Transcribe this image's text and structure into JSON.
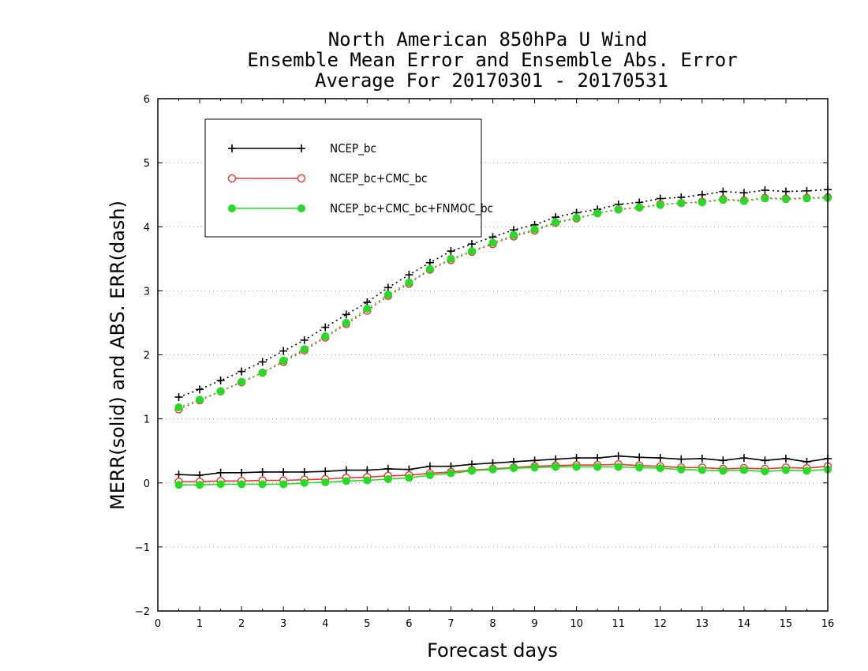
{
  "chart_data": {
    "type": "line",
    "title_lines": [
      "North American 850hPa U Wind",
      "Ensemble Mean Error and Ensemble Abs. Error",
      "Average For 20170301 - 20170531"
    ],
    "xlabel": "Forecast days",
    "ylabel": "MERR(solid) and ABS. ERR(dash)",
    "xlim": [
      0,
      16
    ],
    "ylim": [
      -2,
      6
    ],
    "x_ticks": [
      0,
      1,
      2,
      3,
      4,
      5,
      6,
      7,
      8,
      9,
      10,
      11,
      12,
      13,
      14,
      15,
      16
    ],
    "y_ticks": [
      -2,
      -1,
      0,
      1,
      2,
      3,
      4,
      5,
      6
    ],
    "grid": "horizontal dotted",
    "legend_position": "top-left",
    "x": [
      0.5,
      1,
      1.5,
      2,
      2.5,
      3,
      3.5,
      4,
      4.5,
      5,
      5.5,
      6,
      6.5,
      7,
      7.5,
      8,
      8.5,
      9,
      9.5,
      10,
      10.5,
      11,
      11.5,
      12,
      12.5,
      13,
      13.5,
      14,
      14.5,
      15,
      15.5,
      16
    ],
    "series": [
      {
        "name": "NCEP_bc",
        "color": "#000000",
        "marker": "plus",
        "merr": [
          0.13,
          0.12,
          0.16,
          0.16,
          0.17,
          0.17,
          0.17,
          0.18,
          0.2,
          0.2,
          0.22,
          0.21,
          0.26,
          0.26,
          0.29,
          0.31,
          0.33,
          0.35,
          0.37,
          0.39,
          0.39,
          0.42,
          0.4,
          0.39,
          0.37,
          0.38,
          0.35,
          0.39,
          0.35,
          0.38,
          0.33,
          0.38
        ],
        "abs_err": [
          1.34,
          1.46,
          1.6,
          1.74,
          1.89,
          2.06,
          2.23,
          2.43,
          2.63,
          2.82,
          3.05,
          3.25,
          3.44,
          3.62,
          3.73,
          3.84,
          3.95,
          4.03,
          4.15,
          4.22,
          4.27,
          4.35,
          4.38,
          4.44,
          4.46,
          4.5,
          4.55,
          4.53,
          4.57,
          4.55,
          4.56,
          4.58
        ]
      },
      {
        "name": "NCEP_bc+CMC_bc",
        "color": "#ee3333",
        "marker": "open-circle",
        "merr": [
          0.02,
          0.02,
          0.03,
          0.03,
          0.04,
          0.04,
          0.05,
          0.06,
          0.08,
          0.09,
          0.11,
          0.12,
          0.15,
          0.17,
          0.2,
          0.22,
          0.24,
          0.26,
          0.27,
          0.28,
          0.28,
          0.29,
          0.27,
          0.26,
          0.24,
          0.24,
          0.22,
          0.23,
          0.22,
          0.24,
          0.23,
          0.26
        ],
        "abs_err": [
          1.15,
          1.29,
          1.43,
          1.57,
          1.72,
          1.89,
          2.07,
          2.27,
          2.48,
          2.69,
          2.92,
          3.11,
          3.33,
          3.48,
          3.61,
          3.73,
          3.85,
          3.94,
          4.06,
          4.13,
          4.21,
          4.27,
          4.3,
          4.35,
          4.37,
          4.39,
          4.43,
          4.41,
          4.45,
          4.44,
          4.45,
          4.46
        ]
      },
      {
        "name": "NCEP_bc+CMC_bc+FNMOC_bc",
        "color": "#22dd22",
        "marker": "filled-circle",
        "merr": [
          -0.03,
          -0.03,
          -0.02,
          -0.02,
          -0.02,
          -0.02,
          0.0,
          0.01,
          0.03,
          0.04,
          0.06,
          0.08,
          0.12,
          0.15,
          0.19,
          0.21,
          0.23,
          0.24,
          0.25,
          0.25,
          0.25,
          0.25,
          0.24,
          0.23,
          0.21,
          0.2,
          0.19,
          0.2,
          0.18,
          0.2,
          0.19,
          0.21
        ],
        "abs_err": [
          1.18,
          1.3,
          1.43,
          1.58,
          1.72,
          1.91,
          2.09,
          2.29,
          2.5,
          2.72,
          2.94,
          3.13,
          3.34,
          3.5,
          3.62,
          3.75,
          3.87,
          3.96,
          4.07,
          4.14,
          4.21,
          4.27,
          4.3,
          4.34,
          4.37,
          4.38,
          4.42,
          4.4,
          4.44,
          4.43,
          4.44,
          4.45
        ]
      }
    ]
  }
}
